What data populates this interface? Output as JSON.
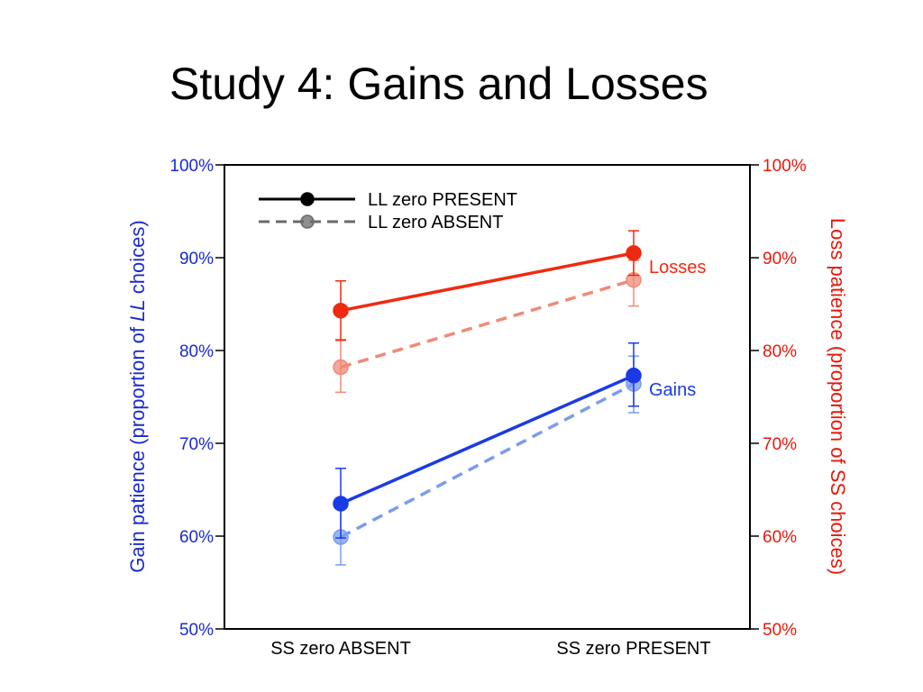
{
  "slide": {
    "title": "Study 4: Gains and Losses"
  },
  "chart_data": {
    "type": "line",
    "categories": [
      "SS zero ABSENT",
      "SS zero PRESENT"
    ],
    "ylim": [
      50,
      100
    ],
    "ticks": [
      50,
      60,
      70,
      80,
      90,
      100
    ],
    "tick_format": "{v}%",
    "y_left_label": "Gain patience (proportion of LL choices)",
    "y_left_label_parts": [
      "Gain patience (proportion of ",
      "LL",
      " choices)"
    ],
    "y_right_label": "Loss patience (proportion of SS choices)",
    "legend": [
      {
        "name": "LL zero PRESENT",
        "style": "solid"
      },
      {
        "name": "LL zero ABSENT",
        "style": "dashed"
      }
    ],
    "legend_placement": "top-left",
    "series": [
      {
        "group": "Losses",
        "ll_zero": "ABSENT",
        "style": "dashed",
        "color": "#f08a78",
        "values": [
          78.2,
          87.6
        ],
        "err_low": [
          75.5,
          84.8
        ],
        "err_high": [
          81.2,
          89.7
        ]
      },
      {
        "group": "Gains",
        "ll_zero": "ABSENT",
        "style": "dashed",
        "color": "#7a9cf0",
        "values": [
          59.9,
          76.4
        ],
        "err_low": [
          56.9,
          73.3
        ],
        "err_high": [
          63.1,
          79.4
        ]
      },
      {
        "group": "Losses",
        "ll_zero": "PRESENT",
        "style": "solid",
        "color": "#f02a10",
        "values": [
          84.3,
          90.5
        ],
        "err_low": [
          81.1,
          88.1
        ],
        "err_high": [
          87.5,
          92.9
        ]
      },
      {
        "group": "Gains",
        "ll_zero": "PRESENT",
        "style": "solid",
        "color": "#1a3ae6",
        "values": [
          63.5,
          77.3
        ],
        "err_low": [
          59.8,
          74.0
        ],
        "err_high": [
          67.3,
          80.8
        ]
      }
    ],
    "series_labels": [
      {
        "text": "Losses",
        "color": "#f02a10",
        "at_category": 1,
        "value": 90.5
      },
      {
        "text": "Gains",
        "color": "#1a3ae6",
        "at_category": 1,
        "value": 77.3
      }
    ],
    "colors": {
      "left_axis": "#1a2ad0",
      "right_axis": "#e8180c",
      "frame": "#000000"
    },
    "grid": false
  }
}
